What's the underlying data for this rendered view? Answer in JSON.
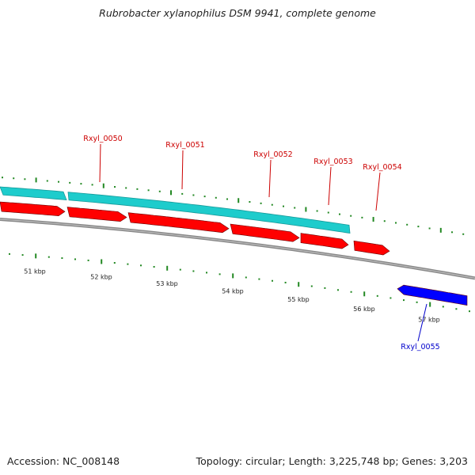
{
  "title": "Rubrobacter xylanophilus DSM 9941, complete genome",
  "footer": {
    "accession": "Accession: NC_008148",
    "summary": "Topology: circular; Length: 3,225,748 bp; Genes: 3,203"
  },
  "colors": {
    "cds_forward": "#ff0000",
    "cds_reverse": "#0000ff",
    "gene_bar": "#1ecccc",
    "backbone": "#888888",
    "tick": "#228822",
    "label_forward": "#cc0000",
    "label_reverse": "#0000cc"
  },
  "scale_labels": [
    "51 kbp",
    "52 kbp",
    "53 kbp",
    "54 kbp",
    "55 kbp",
    "56 kbp",
    "57 kbp"
  ],
  "gene_labels": [
    {
      "id": "Rxyl_0050",
      "strand": "forward"
    },
    {
      "id": "Rxyl_0051",
      "strand": "forward"
    },
    {
      "id": "Rxyl_0052",
      "strand": "forward"
    },
    {
      "id": "Rxyl_0053",
      "strand": "forward"
    },
    {
      "id": "Rxyl_0054",
      "strand": "forward"
    },
    {
      "id": "Rxyl_0055",
      "strand": "reverse"
    }
  ]
}
